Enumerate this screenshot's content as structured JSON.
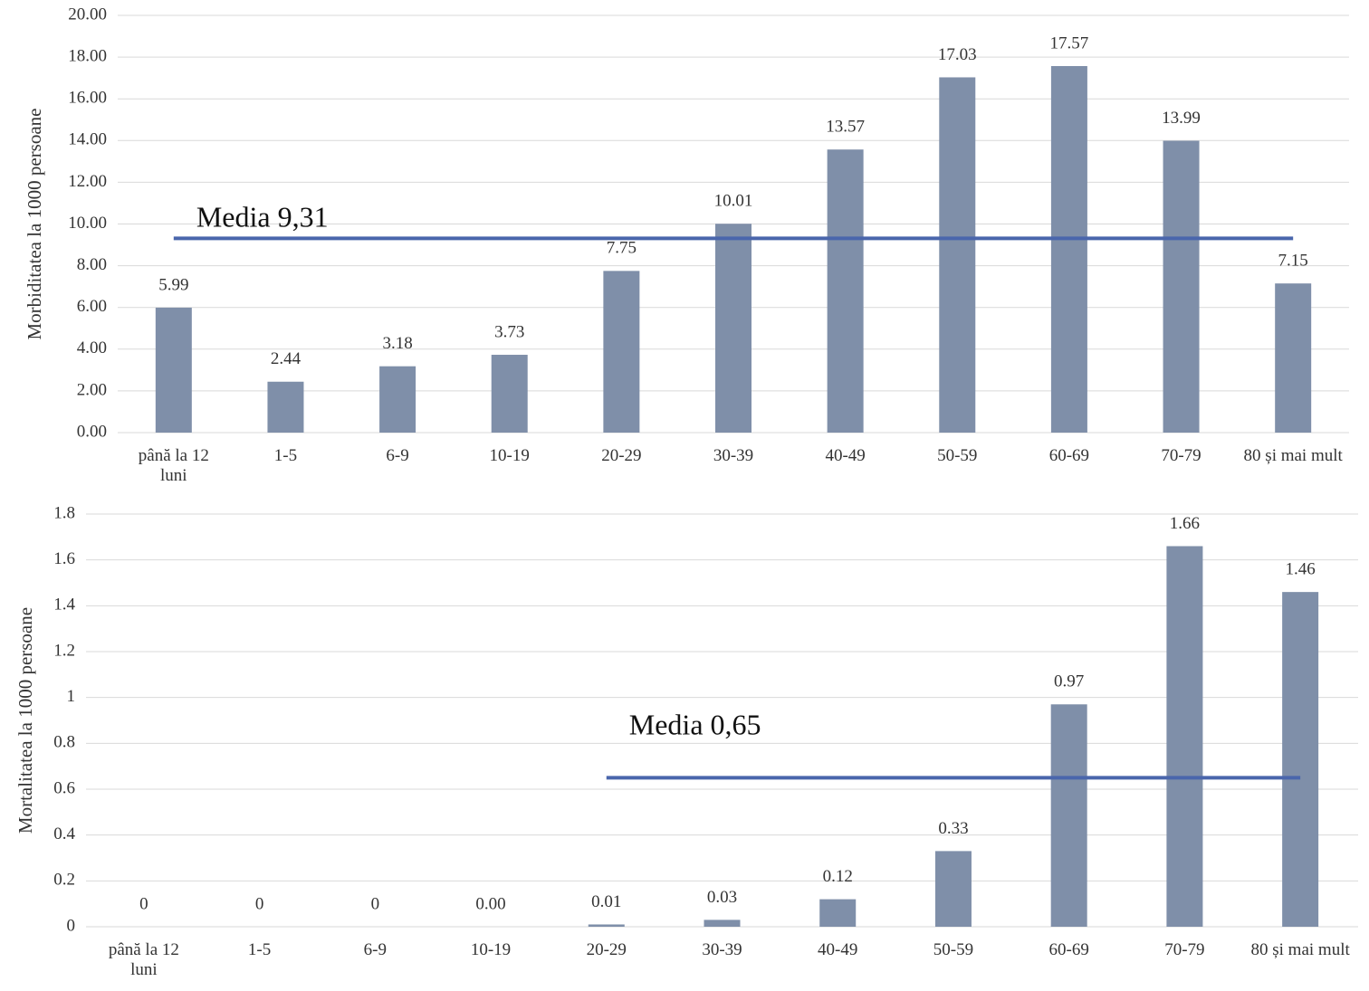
{
  "chart_data": [
    {
      "type": "bar",
      "y_label": "Morbiditatea la 1000 persoane",
      "categories": [
        "până la 12 luni",
        "1-5",
        "6-9",
        "10-19",
        "20-29",
        "30-39",
        "40-49",
        "50-59",
        "60-69",
        "70-79",
        "80 și mai mult"
      ],
      "values": [
        5.99,
        2.44,
        3.18,
        3.73,
        7.75,
        10.01,
        13.57,
        17.03,
        17.57,
        13.99,
        7.15
      ],
      "color": "#7f8fa9",
      "ylim": [
        0,
        20
      ],
      "yticks": [
        {
          "value": 0,
          "label": "0.00"
        },
        {
          "value": 2,
          "label": "2.00"
        },
        {
          "value": 4,
          "label": "4.00"
        },
        {
          "value": 6,
          "label": "6.00"
        },
        {
          "value": 8,
          "label": "8.00"
        },
        {
          "value": 10,
          "label": "10.00"
        },
        {
          "value": 12,
          "label": "12.00"
        },
        {
          "value": 14,
          "label": "14.00"
        },
        {
          "value": 16,
          "label": "16.00"
        },
        {
          "value": 18,
          "label": "18.00"
        },
        {
          "value": 20,
          "label": "20.00"
        }
      ],
      "grid": true,
      "reference_line": {
        "value": 9.31,
        "label": "Media 9,31",
        "color": "#4a66ac",
        "span": [
          "până la 12 luni",
          "80 și mai mult"
        ]
      }
    },
    {
      "type": "bar",
      "y_label": "Mortalitatea la 1000 persoane",
      "categories": [
        "până la 12 luni",
        "1-5",
        "6-9",
        "10-19",
        "20-29",
        "30-39",
        "40-49",
        "50-59",
        "60-69",
        "70-79",
        "80 și mai mult"
      ],
      "values": [
        0,
        0,
        0,
        0,
        0.01,
        0.03,
        0.12,
        0.33,
        0.97,
        1.66,
        1.46
      ],
      "value_labels": [
        "0",
        "0",
        "0",
        "0.00",
        "0.01",
        "0.03",
        "0.12",
        "0.33",
        "0.97",
        "1.66",
        "1.46"
      ],
      "color": "#7f8fa9",
      "ylim": [
        0,
        1.8
      ],
      "yticks": [
        0,
        0.2,
        0.4,
        0.6,
        0.8,
        1,
        1.2,
        1.4,
        1.6,
        1.8
      ],
      "grid": true,
      "reference_line": {
        "value": 0.65,
        "label": "Media 0,65",
        "color": "#4a66ac",
        "span": [
          "20-29",
          "80 și mai mult"
        ]
      }
    }
  ]
}
